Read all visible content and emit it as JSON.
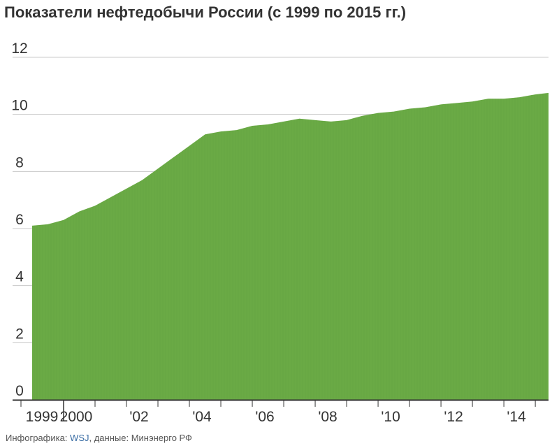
{
  "chart_data": {
    "type": "area",
    "title": "Показатели нефтедобычи России (с 1999 по 2015 гг.)",
    "xlabel": "",
    "ylabel": "",
    "ylim": [
      0,
      12
    ],
    "yticks": [
      0,
      2,
      4,
      6,
      8,
      10,
      12
    ],
    "xticks": [
      "1999",
      "2000",
      "'02",
      "'04",
      "'06",
      "'08",
      "'10",
      "'12",
      "'14"
    ],
    "grid": true,
    "color": "#6aaa45",
    "x": [
      1999.0,
      1999.5,
      2000.0,
      2000.5,
      2001.0,
      2001.5,
      2002.0,
      2002.5,
      2003.0,
      2003.5,
      2004.0,
      2004.5,
      2005.0,
      2005.5,
      2006.0,
      2006.5,
      2007.0,
      2007.5,
      2008.0,
      2008.5,
      2009.0,
      2009.5,
      2010.0,
      2010.5,
      2011.0,
      2011.5,
      2012.0,
      2012.5,
      2013.0,
      2013.5,
      2014.0,
      2014.5,
      2015.0,
      2015.4
    ],
    "y": [
      6.1,
      6.15,
      6.3,
      6.6,
      6.8,
      7.1,
      7.4,
      7.7,
      8.1,
      8.5,
      8.9,
      9.3,
      9.4,
      9.45,
      9.6,
      9.65,
      9.75,
      9.85,
      9.8,
      9.75,
      9.8,
      9.95,
      10.05,
      10.1,
      10.2,
      10.25,
      10.35,
      10.4,
      10.45,
      10.55,
      10.55,
      10.6,
      10.7,
      10.75
    ]
  },
  "footer": {
    "prefix": "Инфографика: ",
    "link": "WSJ",
    "suffix": ", данные: Минэнерго РФ"
  }
}
